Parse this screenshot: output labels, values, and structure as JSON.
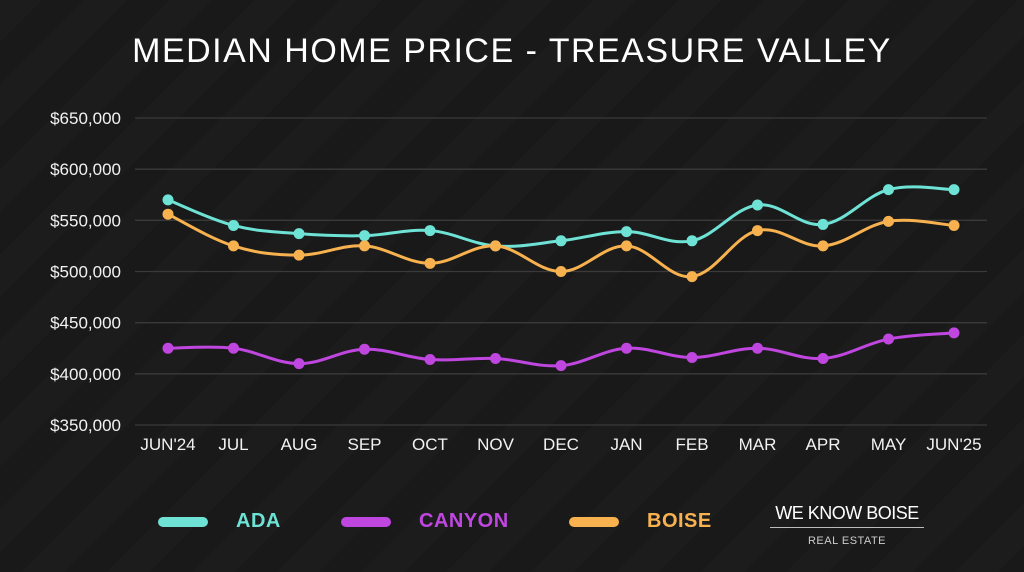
{
  "chart_data": {
    "type": "line",
    "title": "MEDIAN HOME PRICE - TREASURE VALLEY",
    "xlabel": "",
    "ylabel": "",
    "categories": [
      "JUN'24",
      "JUL",
      "AUG",
      "SEP",
      "OCT",
      "NOV",
      "DEC",
      "JAN",
      "FEB",
      "MAR",
      "APR",
      "MAY",
      "JUN'25"
    ],
    "ylim": [
      350000,
      650000
    ],
    "yticks": [
      350000,
      400000,
      450000,
      500000,
      550000,
      600000,
      650000
    ],
    "ytick_labels": [
      "$350,000",
      "$400,000",
      "$450,000",
      "$500,000",
      "$550,000",
      "$600,000",
      "$650,000"
    ],
    "grid": true,
    "legend_placement": "bottom",
    "series": [
      {
        "name": "ADA",
        "color": "#6ee3d5",
        "values": [
          570000,
          545000,
          537000,
          535000,
          540000,
          525000,
          530000,
          539000,
          530000,
          565000,
          546000,
          580000,
          580000
        ]
      },
      {
        "name": "CANYON",
        "color": "#c046e0",
        "values": [
          425000,
          425000,
          410000,
          424000,
          414000,
          415000,
          408000,
          425000,
          416000,
          425000,
          415000,
          434000,
          440000
        ]
      },
      {
        "name": "BOISE",
        "color": "#f7b24f",
        "values": [
          556000,
          525000,
          516000,
          525000,
          508000,
          525000,
          500000,
          525000,
          495000,
          540000,
          525000,
          549000,
          545000
        ]
      }
    ]
  },
  "logo": {
    "main": "WE KNOW BOISE",
    "sub": "REAL ESTATE"
  }
}
